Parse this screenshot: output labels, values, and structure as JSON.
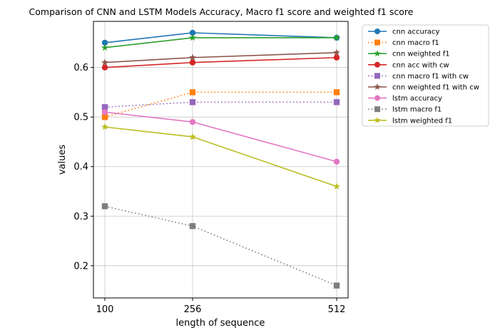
{
  "chart_data": {
    "type": "line",
    "title": "Comparison of CNN and LSTM Models Accuracy, Macro f1 score and weighted f1 score",
    "xlabel": "length of sequence",
    "ylabel": "values",
    "x": [
      100,
      256,
      512
    ],
    "x_tick_labels": [
      "100",
      "256",
      "512"
    ],
    "x_scale": "categorical-equal-spacing",
    "ylim": [
      0.135,
      0.693
    ],
    "y_ticks": [
      0.2,
      0.3,
      0.4,
      0.5,
      0.6
    ],
    "y_tick_labels": [
      "0.2",
      "0.3",
      "0.4",
      "0.5",
      "0.6"
    ],
    "grid": true,
    "legend_position": "outside-right-top",
    "series": [
      {
        "name": "cnn accuracy",
        "values": [
          0.65,
          0.67,
          0.66
        ],
        "color": "#1f77b4",
        "marker": "circle",
        "linestyle": "solid"
      },
      {
        "name": "cnn macro f1",
        "values": [
          0.5,
          0.55,
          0.55
        ],
        "color": "#ff7f0e",
        "marker": "square",
        "linestyle": "dotted"
      },
      {
        "name": "cnn weighted f1",
        "values": [
          0.64,
          0.66,
          0.66
        ],
        "color": "#2ca02c",
        "marker": "star",
        "linestyle": "solid"
      },
      {
        "name": "cnn acc with cw",
        "values": [
          0.6,
          0.61,
          0.62
        ],
        "color": "#d62728",
        "marker": "circle",
        "linestyle": "solid"
      },
      {
        "name": "cnn macro f1 with cw",
        "values": [
          0.52,
          0.53,
          0.53
        ],
        "color": "#9467bd",
        "marker": "square",
        "linestyle": "dotted"
      },
      {
        "name": "cnn weighted f1 with cw",
        "values": [
          0.61,
          0.62,
          0.63
        ],
        "color": "#8c564b",
        "marker": "star",
        "linestyle": "solid"
      },
      {
        "name": "lstm accuracy",
        "values": [
          0.51,
          0.49,
          0.41
        ],
        "color": "#e377c2",
        "marker": "circle",
        "linestyle": "solid"
      },
      {
        "name": "lstm macro f1",
        "values": [
          0.32,
          0.28,
          0.16
        ],
        "color": "#7f7f7f",
        "marker": "square",
        "linestyle": "dotted"
      },
      {
        "name": "lstm weighted f1",
        "values": [
          0.48,
          0.46,
          0.36
        ],
        "color": "#bcbd22",
        "marker": "star",
        "linestyle": "solid"
      }
    ]
  }
}
